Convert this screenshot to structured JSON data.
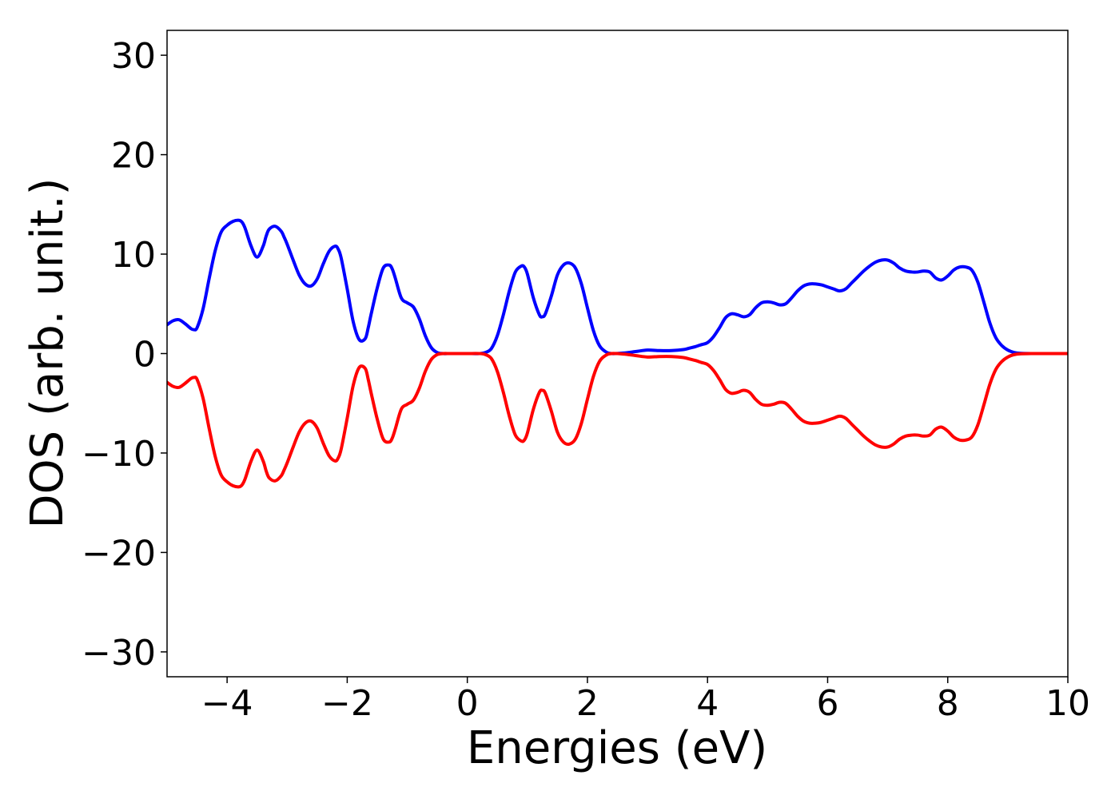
{
  "chart_data": {
    "type": "line",
    "xlabel": "Energies (eV)",
    "ylabel": "DOS (arb. unit.)",
    "xlim": [
      -5,
      10
    ],
    "ylim": [
      -32.5,
      32.5
    ],
    "x_ticks": [
      -4,
      -2,
      0,
      2,
      4,
      6,
      8,
      10
    ],
    "x_tick_labels": [
      "−4",
      "−2",
      "0",
      "2",
      "4",
      "6",
      "8",
      "10"
    ],
    "y_ticks": [
      30,
      20,
      10,
      0,
      -10,
      -20,
      -30
    ],
    "y_tick_labels": [
      "30",
      "20",
      "10",
      "0",
      "−10",
      "−20",
      "−30"
    ],
    "grid": false,
    "series": [
      {
        "color": "#0000ff",
        "x": [
          -5.0,
          -4.9,
          -4.8,
          -4.7,
          -4.6,
          -4.55,
          -4.5,
          -4.4,
          -4.3,
          -4.2,
          -4.1,
          -4.0,
          -3.9,
          -3.8,
          -3.75,
          -3.7,
          -3.6,
          -3.5,
          -3.4,
          -3.35,
          -3.3,
          -3.2,
          -3.1,
          -3.05,
          -3.0,
          -2.9,
          -2.8,
          -2.7,
          -2.6,
          -2.5,
          -2.4,
          -2.3,
          -2.2,
          -2.15,
          -2.1,
          -2.0,
          -1.9,
          -1.8,
          -1.7,
          -1.65,
          -1.6,
          -1.5,
          -1.4,
          -1.3,
          -1.25,
          -1.2,
          -1.1,
          -1.0,
          -0.9,
          -0.8,
          -0.7,
          -0.6,
          -0.5,
          -0.4,
          -0.3,
          -0.2,
          0.0,
          0.2,
          0.3,
          0.4,
          0.5,
          0.6,
          0.7,
          0.8,
          0.9,
          0.95,
          1.0,
          1.1,
          1.2,
          1.25,
          1.3,
          1.4,
          1.5,
          1.6,
          1.7,
          1.8,
          1.9,
          2.0,
          2.1,
          2.2,
          2.3,
          2.4,
          2.6,
          2.8,
          3.0,
          3.2,
          3.4,
          3.6,
          3.7,
          3.8,
          3.9,
          4.0,
          4.1,
          4.2,
          4.3,
          4.4,
          4.5,
          4.6,
          4.7,
          4.8,
          4.9,
          5.0,
          5.1,
          5.2,
          5.3,
          5.4,
          5.5,
          5.6,
          5.7,
          5.8,
          5.9,
          6.0,
          6.1,
          6.2,
          6.3,
          6.4,
          6.5,
          6.6,
          6.7,
          6.8,
          6.9,
          7.0,
          7.1,
          7.2,
          7.3,
          7.4,
          7.5,
          7.6,
          7.7,
          7.8,
          7.9,
          8.0,
          8.1,
          8.2,
          8.3,
          8.4,
          8.5,
          8.6,
          8.7,
          8.8,
          8.9,
          9.0,
          9.1,
          9.2,
          9.4,
          9.6,
          10.0
        ],
        "values": [
          2.9,
          3.3,
          3.4,
          3.0,
          2.5,
          2.4,
          2.6,
          4.5,
          7.5,
          10.3,
          12.2,
          12.9,
          13.3,
          13.4,
          13.2,
          12.6,
          10.8,
          9.7,
          10.8,
          11.8,
          12.5,
          12.8,
          12.3,
          11.7,
          11.0,
          9.4,
          7.9,
          7.0,
          6.8,
          7.5,
          9.0,
          10.3,
          10.8,
          10.5,
          9.6,
          6.5,
          3.2,
          1.4,
          1.5,
          2.6,
          4.0,
          6.6,
          8.6,
          8.9,
          8.5,
          7.6,
          5.6,
          5.1,
          4.7,
          3.5,
          1.8,
          0.6,
          0.1,
          0.0,
          0.0,
          0.0,
          0.0,
          0.0,
          0.1,
          0.5,
          1.8,
          3.9,
          6.3,
          8.2,
          8.8,
          8.7,
          8.0,
          5.6,
          3.9,
          3.7,
          4.0,
          5.8,
          7.9,
          8.9,
          9.1,
          8.6,
          7.0,
          4.6,
          2.3,
          0.8,
          0.2,
          0.0,
          0.05,
          0.2,
          0.35,
          0.3,
          0.3,
          0.4,
          0.55,
          0.7,
          0.9,
          1.1,
          1.7,
          2.6,
          3.6,
          4.0,
          3.9,
          3.7,
          3.9,
          4.6,
          5.1,
          5.2,
          5.1,
          4.9,
          5.0,
          5.6,
          6.3,
          6.8,
          7.0,
          7.0,
          6.9,
          6.7,
          6.5,
          6.3,
          6.5,
          7.1,
          7.7,
          8.3,
          8.8,
          9.2,
          9.4,
          9.4,
          9.1,
          8.6,
          8.3,
          8.2,
          8.2,
          8.3,
          8.2,
          7.6,
          7.4,
          7.8,
          8.4,
          8.7,
          8.7,
          8.4,
          7.2,
          5.2,
          3.1,
          1.6,
          0.8,
          0.35,
          0.12,
          0.03,
          0.0,
          0.0,
          0.0
        ]
      },
      {
        "color": "#ff0000",
        "x": [
          -5.0,
          -4.9,
          -4.8,
          -4.7,
          -4.6,
          -4.55,
          -4.5,
          -4.4,
          -4.3,
          -4.2,
          -4.1,
          -4.0,
          -3.9,
          -3.8,
          -3.75,
          -3.7,
          -3.6,
          -3.5,
          -3.4,
          -3.35,
          -3.3,
          -3.2,
          -3.1,
          -3.05,
          -3.0,
          -2.9,
          -2.8,
          -2.7,
          -2.6,
          -2.5,
          -2.4,
          -2.3,
          -2.2,
          -2.15,
          -2.1,
          -2.0,
          -1.9,
          -1.8,
          -1.7,
          -1.65,
          -1.6,
          -1.5,
          -1.4,
          -1.3,
          -1.25,
          -1.2,
          -1.1,
          -1.0,
          -0.9,
          -0.8,
          -0.7,
          -0.6,
          -0.5,
          -0.4,
          -0.3,
          -0.2,
          0.0,
          0.2,
          0.3,
          0.4,
          0.5,
          0.6,
          0.7,
          0.8,
          0.9,
          0.95,
          1.0,
          1.1,
          1.2,
          1.25,
          1.3,
          1.4,
          1.5,
          1.6,
          1.7,
          1.8,
          1.9,
          2.0,
          2.1,
          2.2,
          2.3,
          2.4,
          2.6,
          2.8,
          3.0,
          3.2,
          3.4,
          3.6,
          3.7,
          3.8,
          3.9,
          4.0,
          4.1,
          4.2,
          4.3,
          4.4,
          4.5,
          4.6,
          4.7,
          4.8,
          4.9,
          5.0,
          5.1,
          5.2,
          5.3,
          5.4,
          5.5,
          5.6,
          5.7,
          5.8,
          5.9,
          6.0,
          6.1,
          6.2,
          6.3,
          6.4,
          6.5,
          6.6,
          6.7,
          6.8,
          6.9,
          7.0,
          7.1,
          7.2,
          7.3,
          7.4,
          7.5,
          7.6,
          7.7,
          7.8,
          7.9,
          8.0,
          8.1,
          8.2,
          8.3,
          8.4,
          8.5,
          8.6,
          8.7,
          8.8,
          8.9,
          9.0,
          9.1,
          9.2,
          9.4,
          9.6,
          10.0
        ],
        "values": [
          -2.9,
          -3.3,
          -3.4,
          -3.0,
          -2.5,
          -2.4,
          -2.6,
          -4.5,
          -7.5,
          -10.3,
          -12.2,
          -12.9,
          -13.3,
          -13.4,
          -13.2,
          -12.6,
          -10.8,
          -9.7,
          -10.8,
          -11.8,
          -12.5,
          -12.8,
          -12.3,
          -11.7,
          -11.0,
          -9.4,
          -7.9,
          -7.0,
          -6.8,
          -7.5,
          -9.0,
          -10.3,
          -10.8,
          -10.5,
          -9.6,
          -6.5,
          -3.2,
          -1.4,
          -1.5,
          -2.6,
          -4.0,
          -6.6,
          -8.6,
          -8.9,
          -8.5,
          -7.6,
          -5.6,
          -5.1,
          -4.7,
          -3.5,
          -1.8,
          -0.6,
          -0.1,
          0.0,
          0.0,
          0.0,
          0.0,
          0.0,
          -0.1,
          -0.5,
          -1.8,
          -3.9,
          -6.3,
          -8.2,
          -8.8,
          -8.7,
          -8.0,
          -5.6,
          -3.9,
          -3.7,
          -4.0,
          -5.8,
          -7.9,
          -8.9,
          -9.1,
          -8.6,
          -7.0,
          -4.6,
          -2.3,
          -0.8,
          -0.2,
          0.0,
          -0.05,
          -0.2,
          -0.35,
          -0.3,
          -0.3,
          -0.4,
          -0.55,
          -0.7,
          -0.9,
          -1.1,
          -1.7,
          -2.6,
          -3.6,
          -4.0,
          -3.9,
          -3.7,
          -3.9,
          -4.6,
          -5.1,
          -5.2,
          -5.1,
          -4.9,
          -5.0,
          -5.6,
          -6.3,
          -6.8,
          -7.0,
          -7.0,
          -6.9,
          -6.7,
          -6.5,
          -6.3,
          -6.5,
          -7.1,
          -7.7,
          -8.3,
          -8.8,
          -9.2,
          -9.4,
          -9.4,
          -9.1,
          -8.6,
          -8.3,
          -8.2,
          -8.2,
          -8.3,
          -8.2,
          -7.6,
          -7.4,
          -7.8,
          -8.4,
          -8.7,
          -8.7,
          -8.4,
          -7.2,
          -5.2,
          -3.1,
          -1.6,
          -0.8,
          -0.35,
          -0.12,
          -0.03,
          0.0,
          0.0,
          0.0
        ]
      }
    ]
  }
}
